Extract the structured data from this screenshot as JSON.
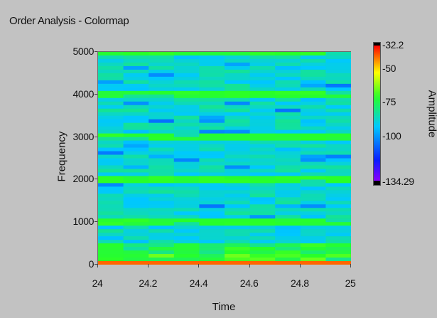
{
  "window": {
    "title": "Order Analysis - Colormap"
  },
  "chart_data": {
    "type": "heatmap",
    "title": "Order Analysis - Colormap",
    "xlabel": "Time",
    "ylabel": "Frequency",
    "xlim": [
      24,
      25
    ],
    "ylim": [
      0,
      5000
    ],
    "x_ticks": [
      "24",
      "24.2",
      "24.4",
      "24.6",
      "24.8",
      "25"
    ],
    "x_tick_values": [
      24,
      24.2,
      24.4,
      24.6,
      24.8,
      25
    ],
    "y_ticks": [
      "5000",
      "4000",
      "3000",
      "2000",
      "1000",
      "0"
    ],
    "y_tick_values": [
      5000,
      4000,
      3000,
      2000,
      1000,
      0
    ],
    "color_scale": {
      "label": "Amplitude",
      "min": -134.29,
      "max": -32.2,
      "tick_labels": [
        "-32.2",
        "-50",
        "-75",
        "-100",
        "-134.29"
      ],
      "tick_values": [
        -32.2,
        -50,
        -75,
        -100,
        -134.29
      ],
      "colors": {
        "below_min": "#000000",
        "min": "#8a00ff",
        "low": "#0a1cff",
        "mid_low": "#00c8ff",
        "mid": "#28ff28",
        "mid_high": "#ffff00",
        "high": "#ff0000",
        "above_max": "#000000"
      }
    },
    "time_columns": 10,
    "frequency_rows": 60,
    "band_features": [
      {
        "frequency": 0,
        "level": "high"
      },
      {
        "frequency": 1000,
        "level": "mid"
      },
      {
        "frequency": 2000,
        "level": "mid"
      },
      {
        "frequency": 3000,
        "level": "mid"
      },
      {
        "frequency": 4000,
        "level": "mid"
      },
      {
        "frequency": 5000,
        "level": "mid"
      }
    ]
  }
}
